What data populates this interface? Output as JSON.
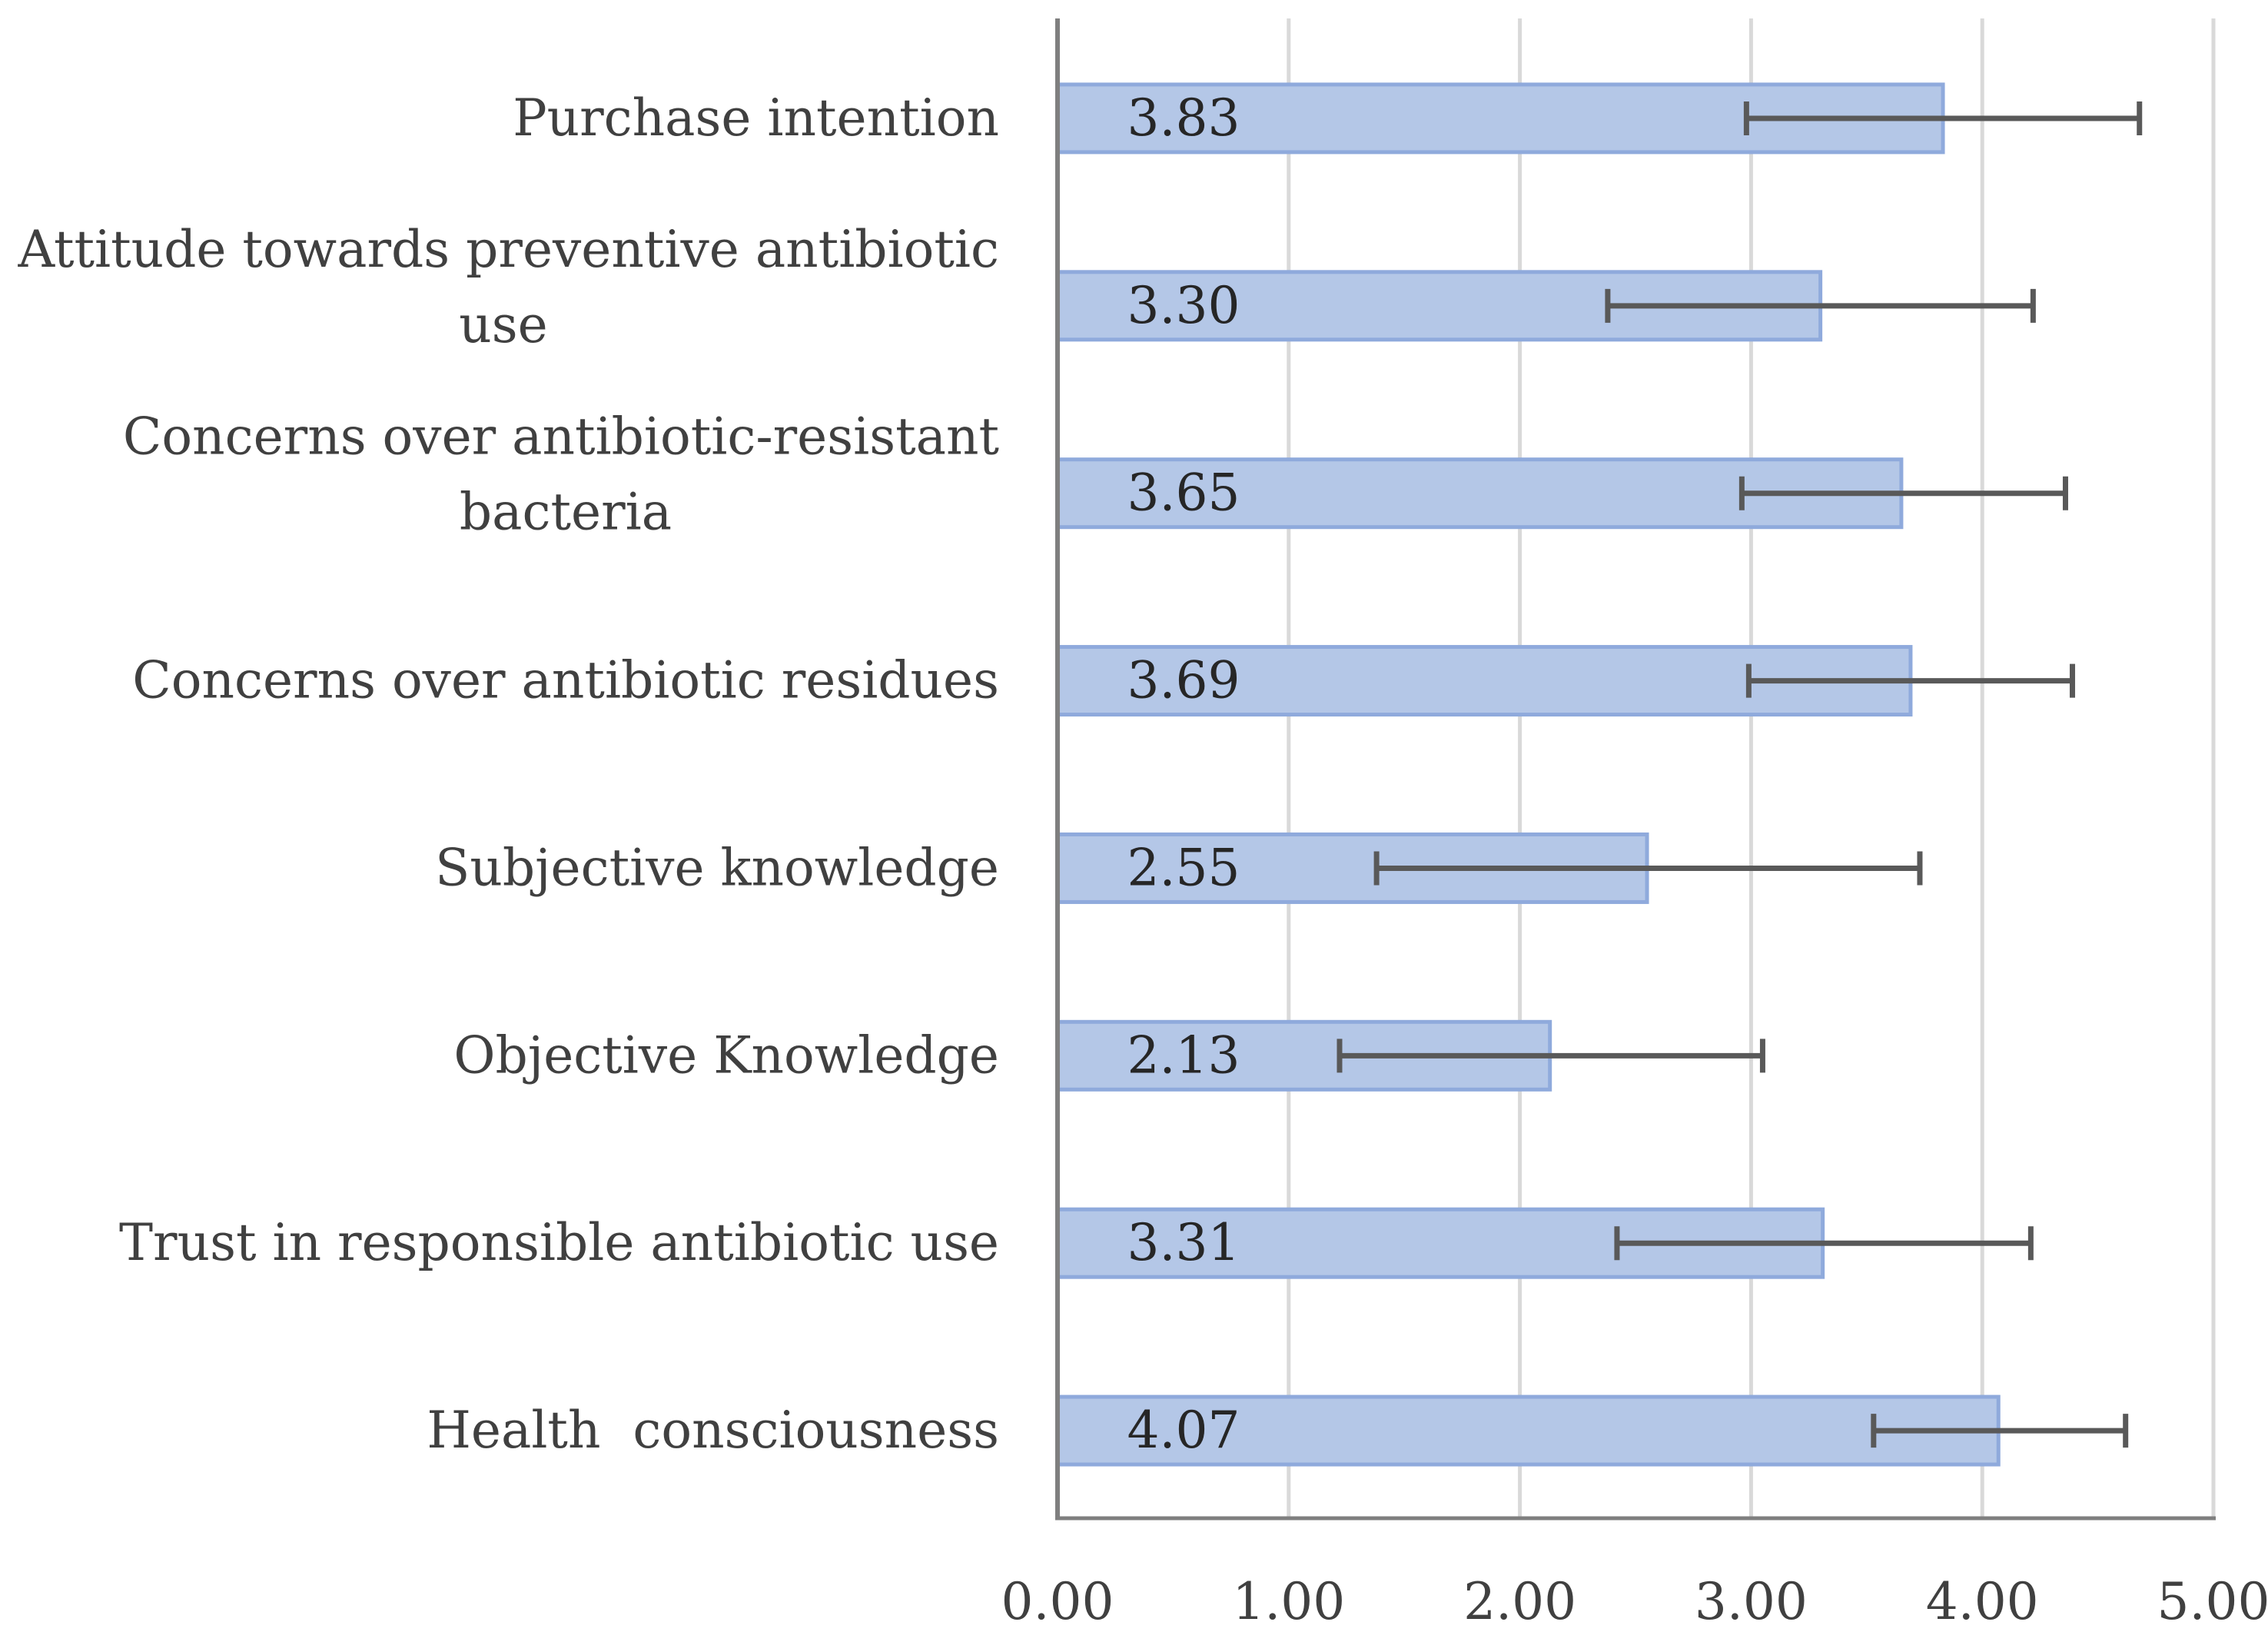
{
  "chart_data": {
    "type": "bar",
    "orientation": "horizontal",
    "title": "",
    "xlabel": "",
    "ylabel": "",
    "xlim": [
      0,
      5
    ],
    "xticks": [
      0,
      1,
      2,
      3,
      4,
      5
    ],
    "xtick_labels": [
      "0.00",
      "1.00",
      "2.00",
      "3.00",
      "4.00",
      "5.00"
    ],
    "grid": "vertical",
    "legend": "none",
    "error_bars": true,
    "categories": [
      {
        "lines": [
          "Purchase intention"
        ],
        "value": 3.83,
        "label": "3.83",
        "err_low": 2.98,
        "err_high": 4.68
      },
      {
        "lines": [
          "Attitude towards preventive antibiotic",
          "use"
        ],
        "value": 3.3,
        "label": "3.30",
        "err_low": 2.38,
        "err_high": 4.22
      },
      {
        "lines": [
          "Concerns over antibiotic-resistant",
          "bacteria"
        ],
        "value": 3.65,
        "label": "3.65",
        "err_low": 2.96,
        "err_high": 4.36
      },
      {
        "lines": [
          "Concerns over antibiotic residues"
        ],
        "value": 3.69,
        "label": "3.69",
        "err_low": 2.99,
        "err_high": 4.39
      },
      {
        "lines": [
          "Subjective knowledge"
        ],
        "value": 2.55,
        "label": "2.55",
        "err_low": 1.38,
        "err_high": 3.73
      },
      {
        "lines": [
          "Objective Knowledge"
        ],
        "value": 2.13,
        "label": "2.13",
        "err_low": 1.22,
        "err_high": 3.05
      },
      {
        "lines": [
          "Trust in responsible antibiotic use"
        ],
        "value": 3.31,
        "label": "3.31",
        "err_low": 2.42,
        "err_high": 4.21
      },
      {
        "lines": [
          "Health  consciousness"
        ],
        "value": 4.07,
        "label": "4.07",
        "err_low": 3.53,
        "err_high": 4.62
      }
    ],
    "colors": {
      "bar_fill": "#b4c7e7",
      "bar_stroke": "#8faadc",
      "axis": "#7f7f7f",
      "grid": "#d9d9d9",
      "error_bar": "#595959",
      "text": "#404040"
    }
  }
}
